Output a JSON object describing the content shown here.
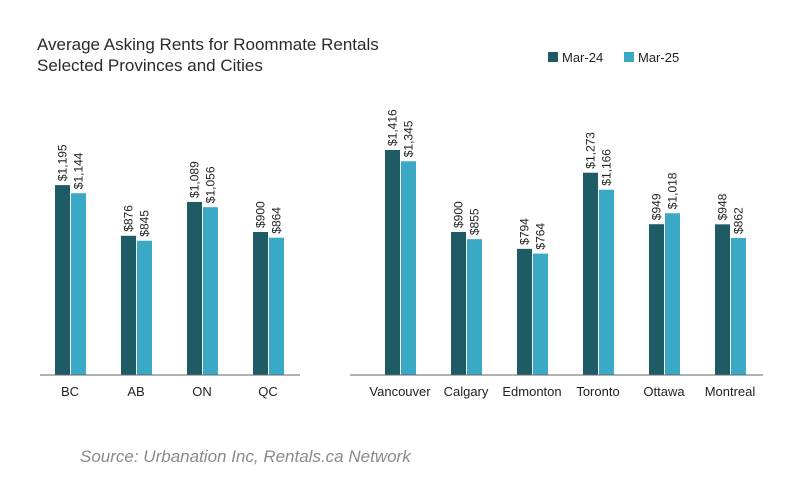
{
  "chart_data": {
    "type": "bar",
    "title": "Average Asking Rents for Roommate Rentals",
    "subtitle": "Selected Provinces and Cities",
    "categories": [
      "BC",
      "AB",
      "ON",
      "QC",
      "Vancouver",
      "Calgary",
      "Edmonton",
      "Toronto",
      "Ottawa",
      "Montreal"
    ],
    "series": [
      {
        "name": "Mar-24",
        "values": [
          1195,
          876,
          1089,
          900,
          1416,
          900,
          794,
          1273,
          949,
          948
        ],
        "labels": [
          "$1,195",
          "$876",
          "$1,089",
          "$900",
          "$1,416",
          "$900",
          "$794",
          "$1,273",
          "$949",
          "$948"
        ]
      },
      {
        "name": "Mar-25",
        "values": [
          1144,
          845,
          1056,
          864,
          1345,
          855,
          764,
          1166,
          1018,
          862
        ],
        "labels": [
          "$1,144",
          "$845",
          "$1,056",
          "$864",
          "$1,345",
          "$855",
          "$764",
          "$1,166",
          "$1,018",
          "$862"
        ]
      }
    ],
    "ylim": [
      0,
      1600
    ],
    "grid": false,
    "legend_position": "top-right",
    "xlabel": "",
    "ylabel": ""
  },
  "colors": {
    "series_0": "#1f5b64",
    "series_1": "#3aa9c6",
    "axis": "#666666"
  },
  "source": "Source: Urbanation Inc, Rentals.ca Network"
}
